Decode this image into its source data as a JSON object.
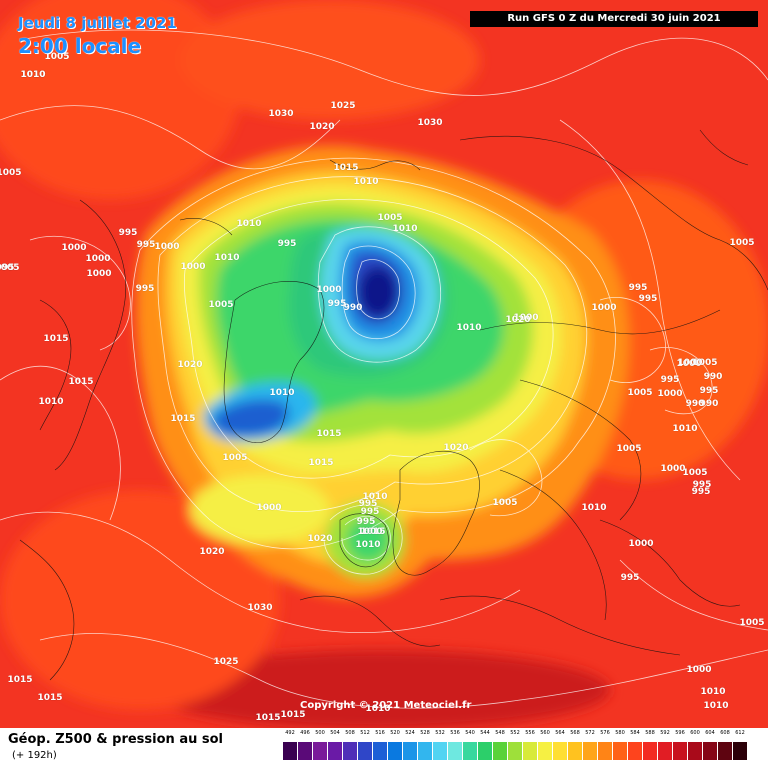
{
  "header": {
    "date": "Jeudi 8 juillet 2021",
    "time": "2:00 locale",
    "run": "Run GFS 0 Z du Mercredi 30 juin 2021"
  },
  "copyright": "Copyright © 2021 Meteociel.fr",
  "legend": {
    "title": "Géop. Z500 & pression au sol",
    "lead": "(+ 192h)",
    "levels": [
      "492",
      "496",
      "500",
      "504",
      "508",
      "512",
      "516",
      "520",
      "524",
      "528",
      "532",
      "536",
      "540",
      "544",
      "548",
      "552",
      "556",
      "560",
      "564",
      "568",
      "572",
      "576",
      "580",
      "584",
      "588",
      "592",
      "596",
      "600",
      "604",
      "608",
      "612"
    ],
    "colors": [
      "#3a0050",
      "#5a0a78",
      "#7a1a9a",
      "#6a1aa6",
      "#4f2fb8",
      "#2f46c8",
      "#1d5fd6",
      "#0a79e0",
      "#1b95e8",
      "#32b6ee",
      "#52d4f2",
      "#6ee8e0",
      "#38d89e",
      "#2ccf6a",
      "#5ad23a",
      "#9ee03a",
      "#d8ea3a",
      "#f6f043",
      "#ffdf33",
      "#ffc21f",
      "#ffa51a",
      "#ff8416",
      "#ff6217",
      "#fe441d",
      "#f32b22",
      "#e11d24",
      "#c8121e",
      "#a90a1a",
      "#860616",
      "#5e0410",
      "#2c0008"
    ]
  },
  "pressure_labels": [
    "1010",
    "1030",
    "1025",
    "1030",
    "1020",
    "1010",
    "1015",
    "1010",
    "1010",
    "1000",
    "995",
    "995",
    "1000",
    "1000",
    "1005",
    "1000",
    "995",
    "1005",
    "1000",
    "995",
    "990",
    "1005",
    "1010",
    "995",
    "1000",
    "1010",
    "995",
    "1000",
    "995",
    "1015",
    "1020",
    "1015",
    "1015",
    "1010",
    "1010",
    "1015",
    "1005",
    "1015",
    "1010",
    "1000",
    "995",
    "1020",
    "1005",
    "1000",
    "1000",
    "990",
    "995",
    "990",
    "1005",
    "1010",
    "1010",
    "1005",
    "1000",
    "995",
    "995",
    "1020",
    "1020",
    "1015",
    "1005",
    "995",
    "1010",
    "1005",
    "1000",
    "995",
    "1030",
    "1025",
    "1015",
    "1015",
    "1015",
    "1015",
    "1000",
    "1010",
    "1010",
    "1005",
    "995",
    "1005",
    "1010",
    "1005",
    "990",
    "995",
    "1000",
    "1000",
    "995",
    "1005",
    "1020",
    "1000",
    "1010"
  ]
}
